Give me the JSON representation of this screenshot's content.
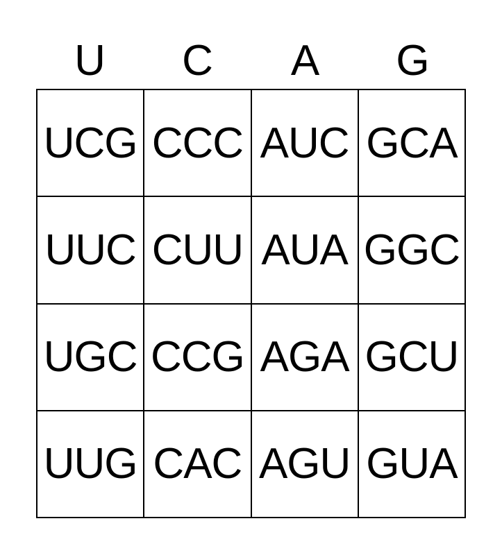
{
  "header": [
    "U",
    "C",
    "A",
    "G"
  ],
  "cells": [
    [
      "UCG",
      "CCC",
      "AUC",
      "GCA"
    ],
    [
      "UUC",
      "CUU",
      "AUA",
      "GGC"
    ],
    [
      "UGC",
      "CCG",
      "AGA",
      "GCU"
    ],
    [
      "UUG",
      "CAC",
      "AGU",
      "GUA"
    ]
  ]
}
